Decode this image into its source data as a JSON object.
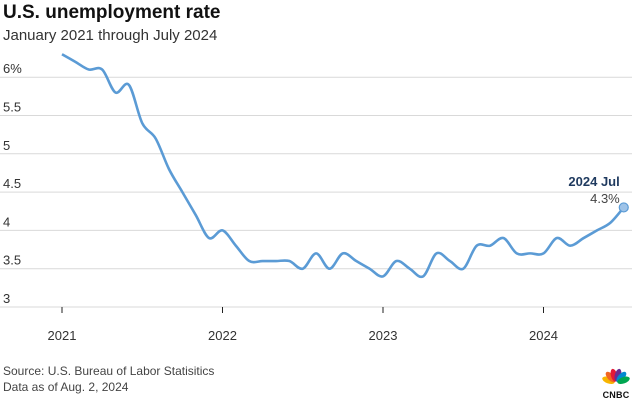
{
  "header": {
    "title": "U.S. unemployment rate",
    "subtitle": "January 2021 through July 2024"
  },
  "footer": {
    "source": "Source: U.S. Bureau of Labor Statisitics",
    "asof": "Data as of Aug. 2, 2024"
  },
  "logo": {
    "text": "CNBC"
  },
  "annotation": {
    "label": "2024 Jul",
    "value": "4.3%"
  },
  "colors": {
    "line": "#5b9bd5",
    "grid": "#d9d9d9",
    "peacock": [
      "#f7b500",
      "#f26522",
      "#e31937",
      "#6b2c91",
      "#0089d0",
      "#00a651"
    ]
  },
  "chart_data": {
    "type": "line",
    "title": "U.S. unemployment rate",
    "subtitle": "January 2021 through July 2024",
    "xlabel": "",
    "ylabel": "",
    "ylim": [
      3,
      6.3
    ],
    "yticks": [
      "6%",
      "5.5",
      "5",
      "4.5",
      "4",
      "3.5",
      "3"
    ],
    "ytick_values": [
      6,
      5.5,
      5,
      4.5,
      4,
      3.5,
      3
    ],
    "xticks": [
      "2021",
      "2022",
      "2023",
      "2024"
    ],
    "grid": true,
    "series": [
      {
        "values": [
          6.3,
          6.2,
          6.1,
          6.1,
          5.8,
          5.9,
          5.4,
          5.2,
          4.8,
          4.5,
          4.2,
          3.9,
          4.0,
          3.8,
          3.6,
          3.6,
          3.6,
          3.6,
          3.5,
          3.7,
          3.5,
          3.7,
          3.6,
          3.5,
          3.4,
          3.6,
          3.5,
          3.4,
          3.7,
          3.6,
          3.5,
          3.8,
          3.8,
          3.9,
          3.7,
          3.7,
          3.7,
          3.9,
          3.8,
          3.9,
          4.0,
          4.1,
          4.3
        ]
      }
    ],
    "months": [
      "2021-01",
      "2021-02",
      "2021-03",
      "2021-04",
      "2021-05",
      "2021-06",
      "2021-07",
      "2021-08",
      "2021-09",
      "2021-10",
      "2021-11",
      "2021-12",
      "2022-01",
      "2022-02",
      "2022-03",
      "2022-04",
      "2022-05",
      "2022-06",
      "2022-07",
      "2022-08",
      "2022-09",
      "2022-10",
      "2022-11",
      "2022-12",
      "2023-01",
      "2023-02",
      "2023-03",
      "2023-04",
      "2023-05",
      "2023-06",
      "2023-07",
      "2023-08",
      "2023-09",
      "2023-10",
      "2023-11",
      "2023-12",
      "2024-01",
      "2024-02",
      "2024-03",
      "2024-04",
      "2024-05",
      "2024-06",
      "2024-07"
    ]
  }
}
